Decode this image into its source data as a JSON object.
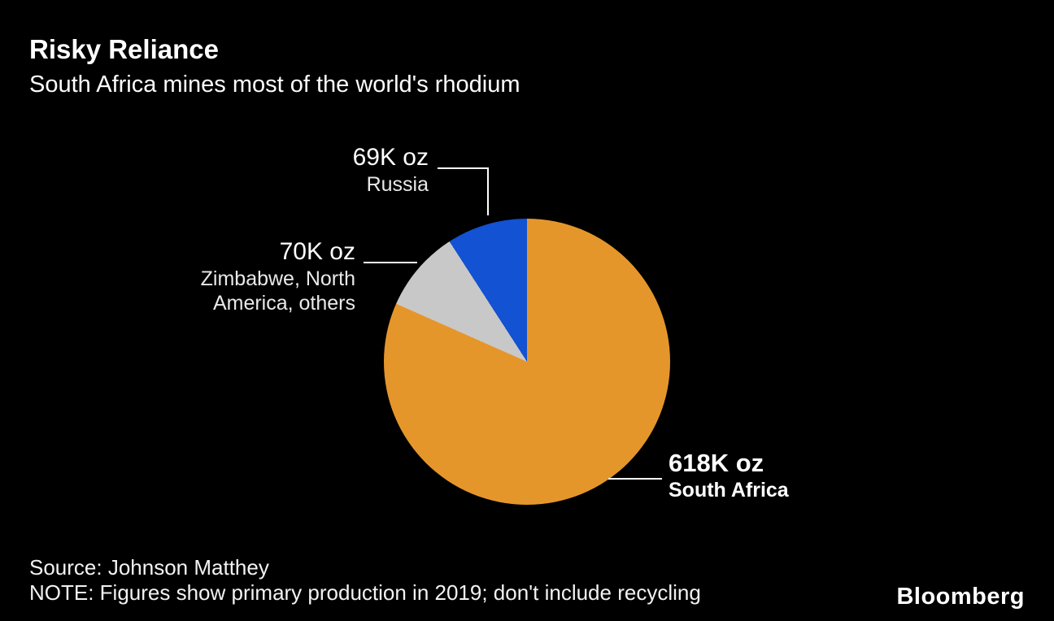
{
  "header": {
    "title": "Risky Reliance",
    "subtitle": "South Africa mines most of the world's rhodium"
  },
  "chart_data": {
    "type": "pie",
    "title": "Risky Reliance",
    "subtitle": "South Africa mines most of the world's rhodium",
    "unit": "K oz",
    "start_angle_deg": 0,
    "direction": "clockwise",
    "total_value": 757,
    "slices": [
      {
        "label": "South Africa",
        "value": 618,
        "value_label": "618K oz",
        "color": "#E5962B"
      },
      {
        "label": "Zimbabwe, North America, others",
        "value": 70,
        "value_label": "70K oz",
        "color": "#C8C8C8"
      },
      {
        "label": "Russia",
        "value": 69,
        "value_label": "69K oz",
        "color": "#1252D3"
      }
    ],
    "legend_position": "none",
    "background_color": "#000000"
  },
  "labels": {
    "russia": {
      "value": "69K oz",
      "name": "Russia"
    },
    "zimbabwe": {
      "value": "70K oz",
      "name_line1": "Zimbabwe, North",
      "name_line2": "America, others"
    },
    "south_africa": {
      "value": "618K oz",
      "name": "South Africa"
    }
  },
  "footer": {
    "source": "Source: Johnson Matthey",
    "note": "NOTE: Figures show primary production in 2019; don't include recycling",
    "brand": "Bloomberg"
  }
}
